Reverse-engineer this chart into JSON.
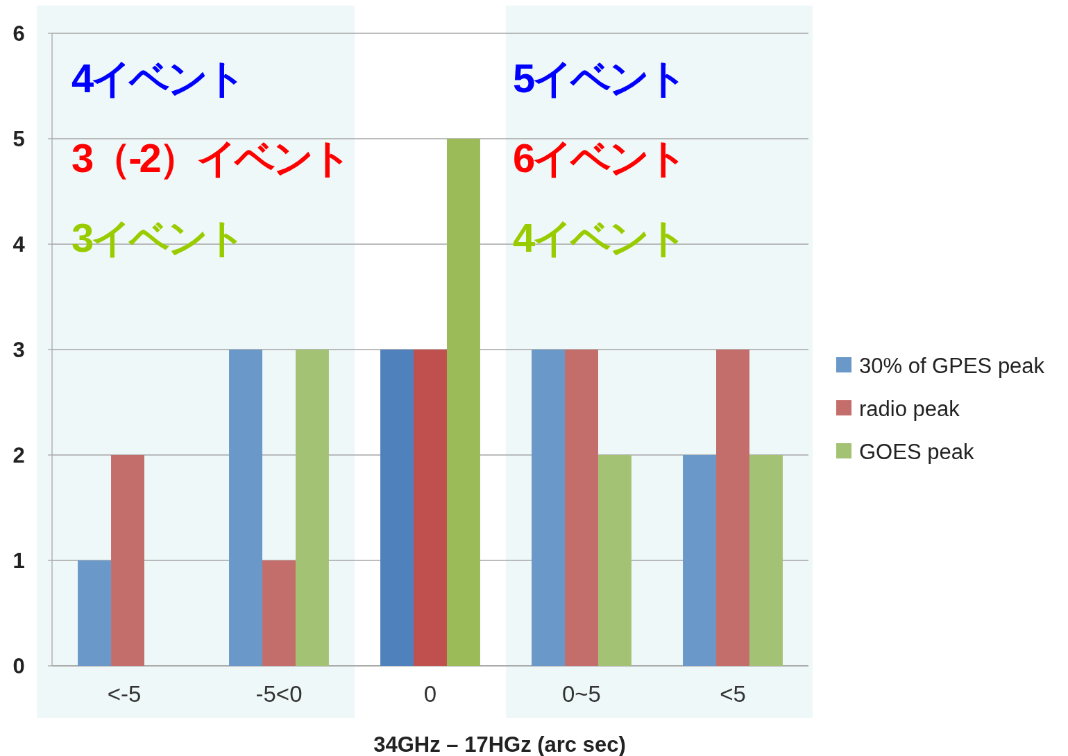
{
  "chart_data": {
    "type": "bar",
    "xlabel": "34GHz – 17HGz (arc sec)",
    "categories": [
      "<-5",
      "-5<0",
      "0",
      "0~5",
      "<5"
    ],
    "series": [
      {
        "name": "30% of GPES peak",
        "color": "#6a98c8",
        "colors": [
          "#6a98c8",
          "#6a98c8",
          "#4f81bd",
          "#6a98c8",
          "#6a98c8"
        ],
        "values": [
          1,
          3,
          3,
          3,
          2
        ]
      },
      {
        "name": "radio peak",
        "color": "#c46e6c",
        "colors": [
          "#c46e6c",
          "#c46e6c",
          "#c0504d",
          "#c46e6c",
          "#c46e6c"
        ],
        "values": [
          2,
          1,
          3,
          3,
          3
        ]
      },
      {
        "name": "GOES peak",
        "color": "#a4c274",
        "colors": [
          "#a4c274",
          "#a4c274",
          "#9bbb59",
          "#a4c274",
          "#a4c274"
        ],
        "values": [
          0,
          3,
          5,
          2,
          2
        ]
      }
    ],
    "ylim": [
      0,
      6
    ],
    "yticks": [
      0,
      1,
      2,
      3,
      4,
      5,
      6
    ],
    "grid": "y",
    "legend": "right",
    "bands": [
      {
        "axis": "x",
        "from": "<-5",
        "to": "-5<0",
        "color": "#eff8f8"
      },
      {
        "axis": "x",
        "from": "0~5",
        "to": "<5",
        "color": "#eff8f8"
      }
    ],
    "annotations": [
      "4イベント",
      "3（-2）イベント",
      "3イベント",
      "5イベント",
      "6イベント",
      "4イベント"
    ]
  }
}
